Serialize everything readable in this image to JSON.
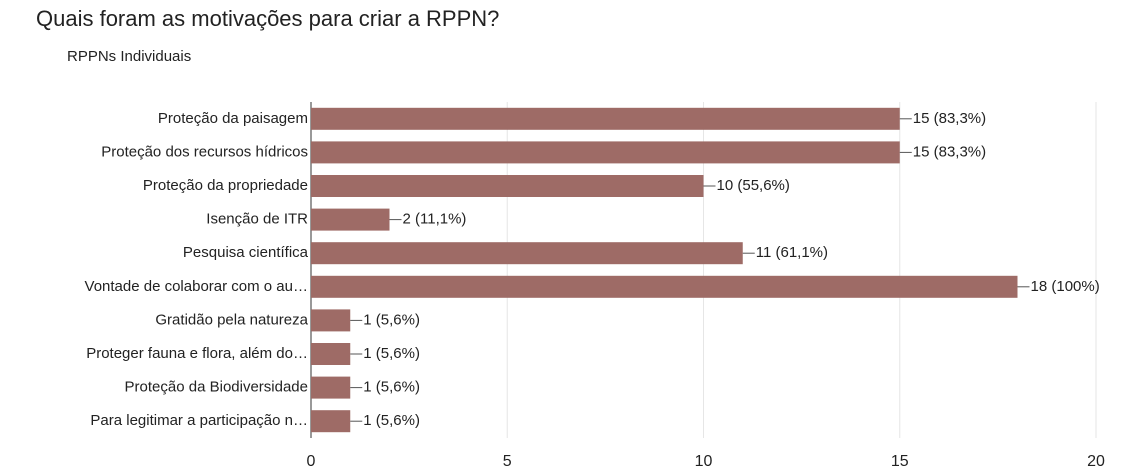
{
  "chart_data": {
    "type": "bar",
    "orientation": "horizontal",
    "title": "Quais foram as motivações para criar a RPPN?",
    "subtitle": "RPPNs Individuais",
    "categories": [
      "Proteção da paisagem",
      "Proteção dos recursos hídricos",
      "Proteção da propriedade",
      "Isenção de ITR",
      "Pesquisa científica",
      "Vontade de colaborar com o au…",
      "Gratidão pela natureza",
      "Proteger fauna e flora, além do…",
      "Proteção da Biodiversidade",
      "Para legitimar a participação n…"
    ],
    "values": [
      15,
      15,
      10,
      2,
      11,
      18,
      1,
      1,
      1,
      1
    ],
    "value_labels": [
      "15 (83,3%)",
      "15 (83,3%)",
      "10 (55,6%)",
      "2 (11,1%)",
      "11 (61,1%)",
      "18 (100%)",
      "1 (5,6%)",
      "1 (5,6%)",
      "1 (5,6%)",
      "1 (5,6%)"
    ],
    "color": "#9e6b66",
    "xlim": [
      0,
      20
    ],
    "xticks": [
      0,
      5,
      10,
      15,
      20
    ],
    "grid": true
  }
}
